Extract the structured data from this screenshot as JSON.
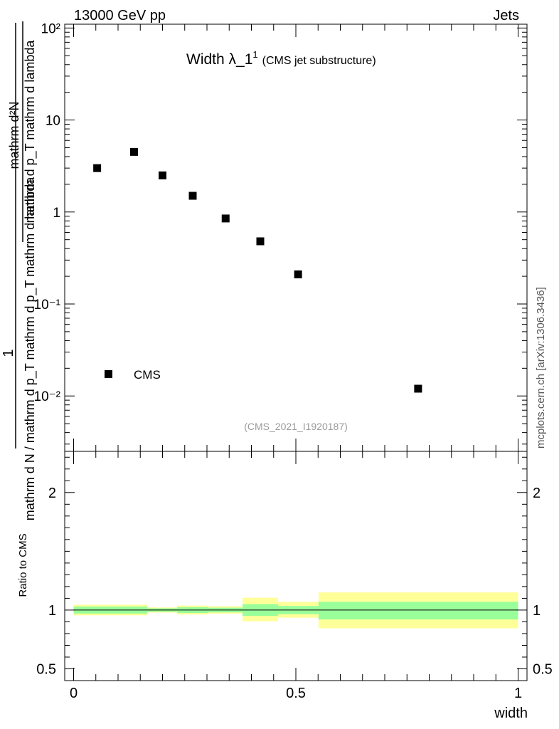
{
  "header": {
    "left": "13000 GeV pp",
    "right": "Jets"
  },
  "side_label": "mcplots.cern.ch [arXiv:1306.3436]",
  "watermark": "(CMS_2021_I1920187)",
  "chart_data": [
    {
      "type": "scatter",
      "title": "Width λ_1",
      "title_sup": "1",
      "subtitle": "(CMS jet substructure)",
      "ylabel": {
        "numerator": "mathrm d²N",
        "denominator_top": "mathrm d p_T mathrm d lambda",
        "denominator": "mathrm d N / mathrm d p_T mathrm d p_T mathrm d lambda",
        "one": "1"
      },
      "yscale": "log",
      "ylim": [
        0.0025,
        110
      ],
      "xlim": [
        -0.02,
        1.02
      ],
      "y_ticks": [
        "10⁻²",
        "10⁻¹",
        "1",
        "10",
        "10²"
      ],
      "legend": {
        "placement": "bottom-left",
        "entries": [
          {
            "name": "CMS",
            "marker": "square"
          }
        ]
      },
      "series": [
        {
          "name": "CMS",
          "x": [
            0.053,
            0.136,
            0.2,
            0.268,
            0.342,
            0.42,
            0.505,
            0.775
          ],
          "y": [
            3.0,
            4.5,
            2.5,
            1.5,
            0.85,
            0.48,
            0.21,
            0.012
          ]
        }
      ]
    },
    {
      "type": "area",
      "ylabel": "Ratio to CMS",
      "xlabel": "width",
      "xlim": [
        -0.02,
        1.02
      ],
      "ylim": [
        0.4,
        2.35
      ],
      "x_ticks": [
        "0",
        "0.5",
        "1"
      ],
      "y_ticks": [
        "0.5",
        "1",
        "2"
      ],
      "reference_line": 1,
      "bands": [
        {
          "x0": 0.0,
          "x1": 0.166,
          "inner": [
            0.97,
            1.03
          ],
          "outer": [
            0.955,
            1.045
          ]
        },
        {
          "x0": 0.166,
          "x1": 0.233,
          "inner": [
            0.985,
            1.015
          ],
          "outer": [
            0.978,
            1.022
          ]
        },
        {
          "x0": 0.233,
          "x1": 0.303,
          "inner": [
            0.975,
            1.025
          ],
          "outer": [
            0.962,
            1.038
          ]
        },
        {
          "x0": 0.303,
          "x1": 0.38,
          "inner": [
            0.98,
            1.02
          ],
          "outer": [
            0.97,
            1.032
          ]
        },
        {
          "x0": 0.38,
          "x1": 0.46,
          "inner": [
            0.95,
            1.05
          ],
          "outer": [
            0.905,
            1.105
          ]
        },
        {
          "x0": 0.46,
          "x1": 0.551,
          "inner": [
            0.965,
            1.035
          ],
          "outer": [
            0.935,
            1.07
          ]
        },
        {
          "x0": 0.551,
          "x1": 1.0,
          "inner": [
            0.92,
            1.07
          ],
          "outer": [
            0.845,
            1.15
          ]
        }
      ],
      "colors": {
        "inner": "#99ff99",
        "outer": "#ffff99"
      }
    }
  ]
}
